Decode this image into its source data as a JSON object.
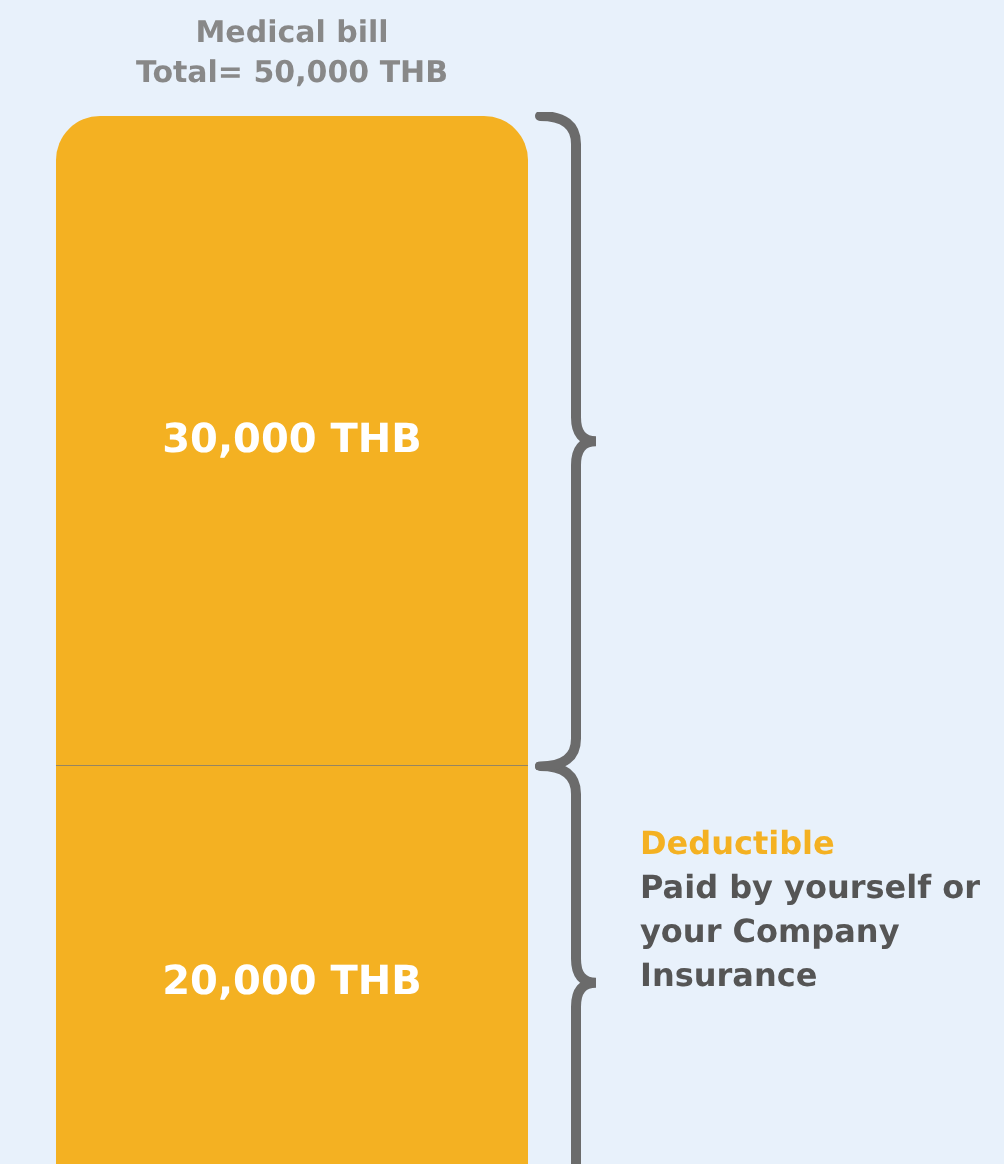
{
  "chart_data": {
    "type": "bar",
    "title": "Medical bill",
    "subtitle": "Total= 50,000 THB",
    "categories": [
      null
    ],
    "stacked": true,
    "legend": false,
    "tick_labels": false,
    "series": [
      {
        "color": "#f4b122",
        "values": [
          20000
        ],
        "value_labels": [
          "20,000 THB"
        ]
      },
      {
        "color": "#f4b122",
        "values": [
          30000
        ],
        "value_labels": [
          "30,000 THB"
        ]
      }
    ],
    "annotations": [
      "Deductible",
      "Paid by yourself or your Company Insurance"
    ]
  }
}
